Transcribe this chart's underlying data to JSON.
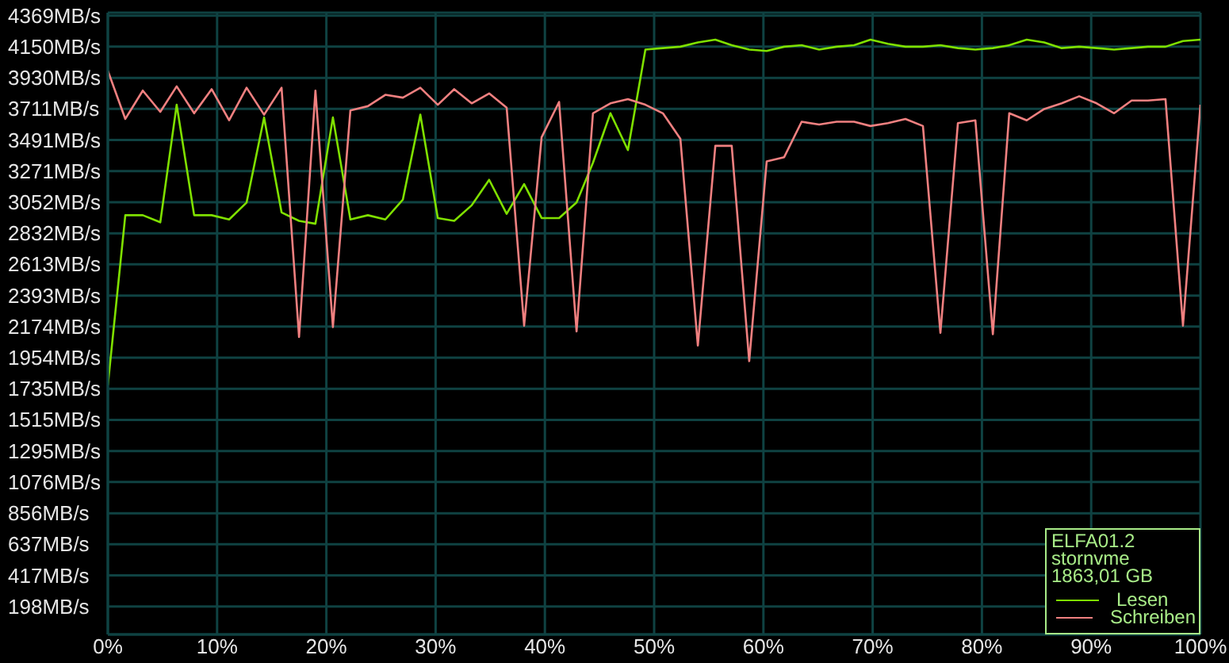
{
  "chart_data": {
    "type": "line",
    "x": [
      0,
      1.6,
      3.2,
      4.8,
      6.3,
      7.9,
      9.5,
      11.1,
      12.7,
      14.3,
      15.9,
      17.5,
      19,
      20.6,
      22.2,
      23.8,
      25.4,
      27,
      28.6,
      30.2,
      31.7,
      33.3,
      34.9,
      36.5,
      38.1,
      39.7,
      41.3,
      42.9,
      44.4,
      46,
      47.6,
      49.2,
      50.8,
      52.4,
      54,
      55.6,
      57.1,
      58.7,
      60.3,
      61.9,
      63.5,
      65.1,
      66.7,
      68.3,
      69.8,
      71.4,
      73,
      74.6,
      76.2,
      77.8,
      79.4,
      81,
      82.5,
      84.1,
      85.7,
      87.3,
      88.9,
      90.5,
      92.1,
      93.7,
      95.2,
      96.8,
      98.4,
      100
    ],
    "xlim": [
      0,
      100
    ],
    "xticks": [
      {
        "value": 0,
        "label": "0%"
      },
      {
        "value": 10,
        "label": "10%"
      },
      {
        "value": 20,
        "label": "20%"
      },
      {
        "value": 30,
        "label": "30%"
      },
      {
        "value": 40,
        "label": "40%"
      },
      {
        "value": 50,
        "label": "50%"
      },
      {
        "value": 60,
        "label": "60%"
      },
      {
        "value": 70,
        "label": "70%"
      },
      {
        "value": 80,
        "label": "80%"
      },
      {
        "value": 90,
        "label": "90%"
      },
      {
        "value": 100,
        "label": "100%"
      }
    ],
    "ylim": [
      0,
      4390
    ],
    "yticks": [
      {
        "value": 198,
        "label": "198MB/s"
      },
      {
        "value": 417,
        "label": "417MB/s"
      },
      {
        "value": 637,
        "label": "637MB/s"
      },
      {
        "value": 856,
        "label": "856MB/s"
      },
      {
        "value": 1076,
        "label": "1076MB/s"
      },
      {
        "value": 1295,
        "label": "1295MB/s"
      },
      {
        "value": 1515,
        "label": "1515MB/s"
      },
      {
        "value": 1735,
        "label": "1735MB/s"
      },
      {
        "value": 1954,
        "label": "1954MB/s"
      },
      {
        "value": 2174,
        "label": "2174MB/s"
      },
      {
        "value": 2393,
        "label": "2393MB/s"
      },
      {
        "value": 2613,
        "label": "2613MB/s"
      },
      {
        "value": 2832,
        "label": "2832MB/s"
      },
      {
        "value": 3052,
        "label": "3052MB/s"
      },
      {
        "value": 3271,
        "label": "3271MB/s"
      },
      {
        "value": 3491,
        "label": "3491MB/s"
      },
      {
        "value": 3711,
        "label": "3711MB/s"
      },
      {
        "value": 3930,
        "label": "3930MB/s"
      },
      {
        "value": 4150,
        "label": "4150MB/s"
      },
      {
        "value": 4369,
        "label": "4369MB/s"
      }
    ],
    "grid": true,
    "legend": "bottom right",
    "annotations": [
      "ELFA01.2",
      "stornvme",
      "1863,01 GB"
    ],
    "series": [
      {
        "name": "Lesen",
        "color": "#7fe000",
        "values": [
          1760,
          2960,
          2960,
          2910,
          3740,
          2960,
          2960,
          2930,
          3050,
          3650,
          2980,
          2920,
          2900,
          3650,
          2930,
          2960,
          2930,
          3070,
          3670,
          2940,
          2920,
          3030,
          3210,
          2970,
          3180,
          2940,
          2940,
          3050,
          3330,
          3680,
          3420,
          4130,
          4140,
          4150,
          4180,
          4200,
          4160,
          4130,
          4120,
          4150,
          4160,
          4130,
          4150,
          4160,
          4200,
          4170,
          4150,
          4150,
          4160,
          4140,
          4130,
          4140,
          4160,
          4200,
          4180,
          4140,
          4150,
          4140,
          4130,
          4140,
          4150,
          4150,
          4190,
          4200
        ]
      },
      {
        "name": "Schreiben",
        "color": "#f08080",
        "values": [
          3980,
          3640,
          3840,
          3690,
          3870,
          3680,
          3850,
          3630,
          3860,
          3670,
          3860,
          2100,
          3840,
          2170,
          3700,
          3730,
          3810,
          3790,
          3860,
          3740,
          3850,
          3750,
          3820,
          3720,
          2180,
          3510,
          3760,
          2140,
          3680,
          3750,
          3780,
          3740,
          3680,
          3500,
          2040,
          3450,
          3450,
          1930,
          3340,
          3370,
          3620,
          3600,
          3620,
          3620,
          3590,
          3610,
          3640,
          3590,
          2130,
          3610,
          3630,
          2120,
          3680,
          3630,
          3710,
          3750,
          3800,
          3750,
          3680,
          3770,
          3770,
          3780,
          2180,
          3740
        ]
      }
    ]
  }
}
